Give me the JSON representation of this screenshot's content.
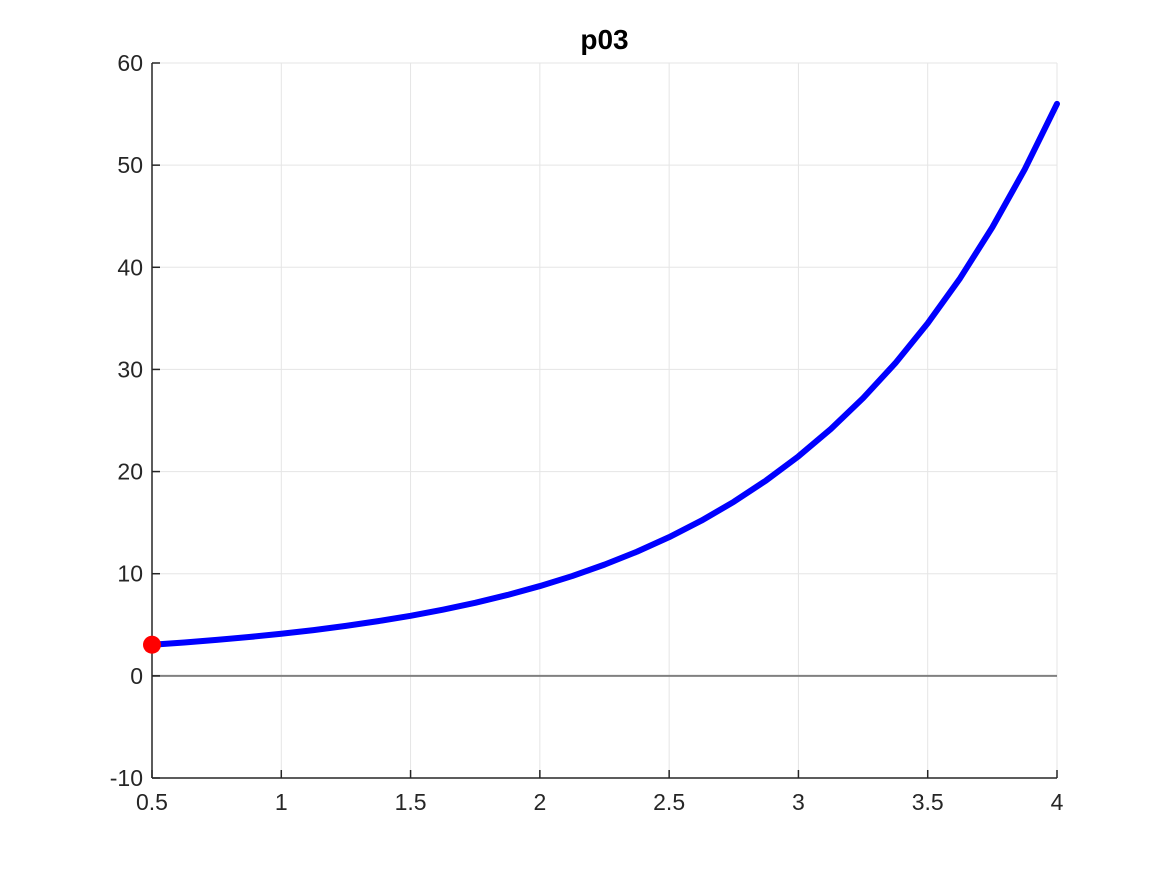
{
  "chart_data": {
    "type": "line",
    "title": "p03",
    "xlabel": "",
    "ylabel": "",
    "xlim": [
      0.5,
      4
    ],
    "ylim": [
      -10,
      60
    ],
    "x_tick_values": [
      0.5,
      1,
      1.5,
      2,
      2.5,
      3,
      3.5,
      4
    ],
    "x_tick_labels": [
      "0.5",
      "1",
      "1.5",
      "2",
      "2.5",
      "3",
      "3.5",
      "4"
    ],
    "y_tick_values": [
      -10,
      0,
      10,
      20,
      30,
      40,
      50,
      60
    ],
    "y_tick_labels": [
      "-10",
      "0",
      "10",
      "20",
      "30",
      "40",
      "50",
      "60"
    ],
    "grid": true,
    "legend": "none",
    "series": [
      {
        "name": "solution-curve",
        "type": "line",
        "color": "#0000ff",
        "line_width": 6,
        "x": [
          0.5,
          0.625,
          0.75,
          0.875,
          1,
          1.125,
          1.25,
          1.375,
          1.5,
          1.625,
          1.75,
          1.875,
          2,
          2.125,
          2.25,
          2.375,
          2.5,
          2.625,
          2.75,
          2.875,
          3,
          3.125,
          3.25,
          3.375,
          3.5,
          3.625,
          3.75,
          3.875,
          4
        ],
        "y": [
          3.05,
          3.27,
          3.52,
          3.8,
          4.12,
          4.48,
          4.89,
          5.36,
          5.88,
          6.48,
          7.15,
          7.92,
          8.79,
          9.77,
          10.89,
          12.15,
          13.58,
          15.2,
          17.04,
          19.13,
          21.49,
          24.16,
          27.19,
          30.62,
          34.52,
          38.92,
          43.92,
          49.58,
          56.0
        ]
      },
      {
        "name": "initial-condition-marker",
        "type": "scatter",
        "color": "#ff0000",
        "marker_radius": 9,
        "x": [
          0.5
        ],
        "y": [
          3.05
        ]
      }
    ],
    "reference_lines": [
      {
        "axis": "y",
        "value": 0,
        "color": "#808080",
        "width": 2
      }
    ],
    "colors": {
      "grid": "#e5e5e5",
      "axis": "#262626",
      "tick_label": "#262626",
      "title": "#000000",
      "background": "#ffffff"
    }
  }
}
